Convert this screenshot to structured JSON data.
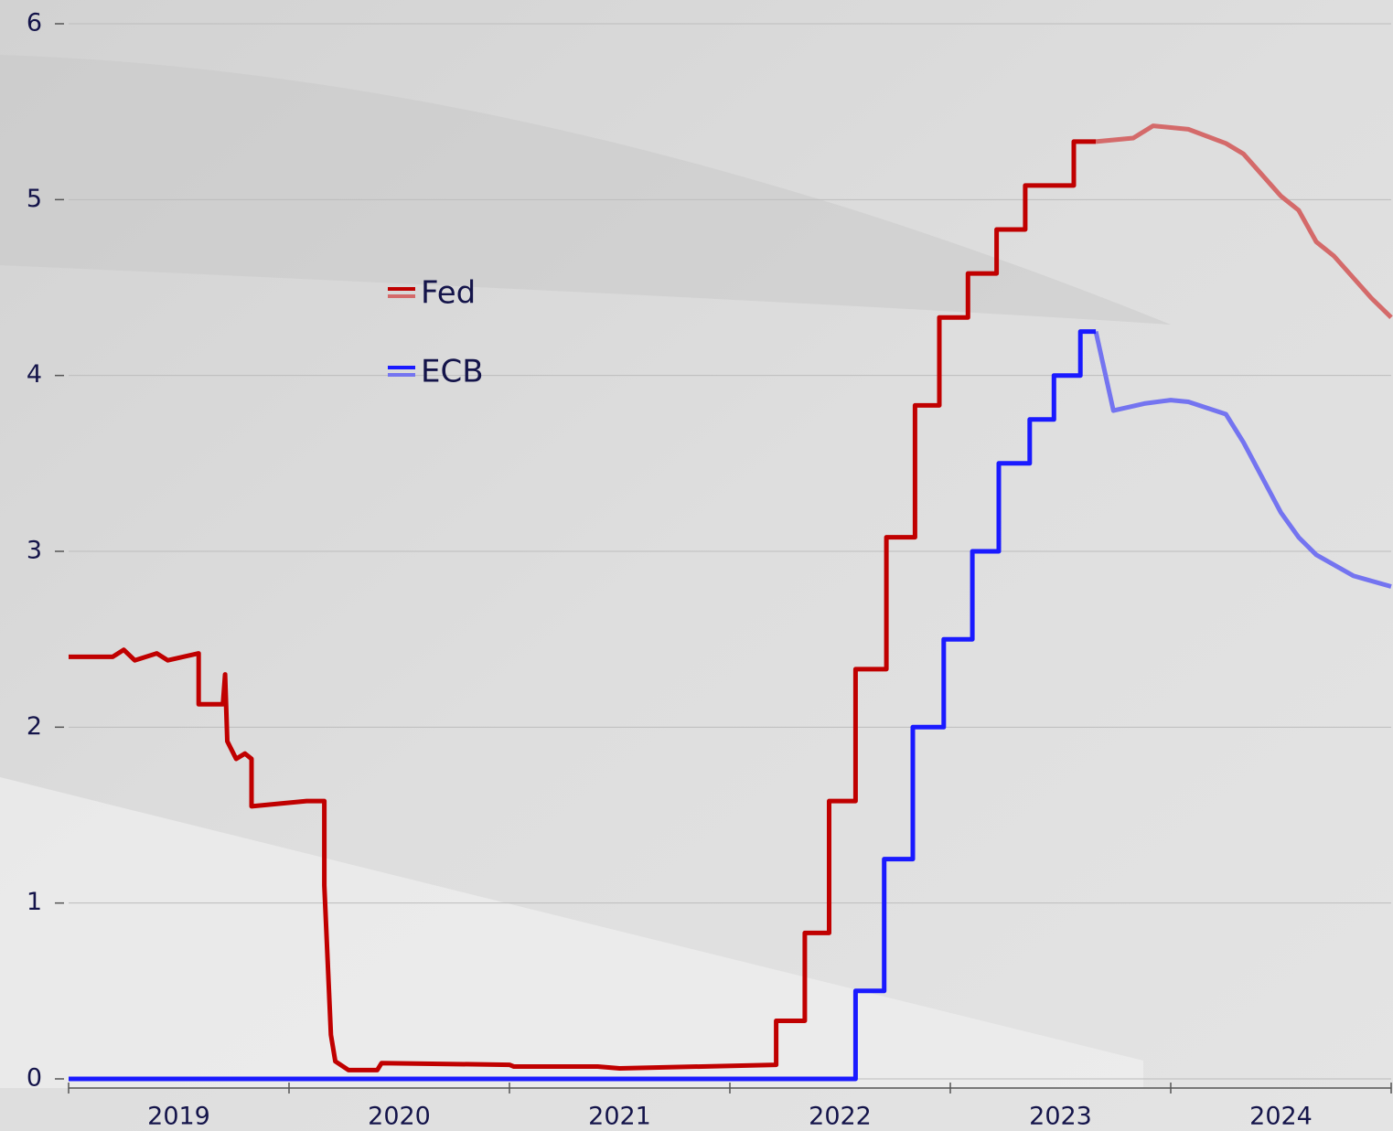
{
  "chart_data": {
    "type": "line",
    "xlim": [
      2019,
      2025
    ],
    "ylim": [
      0,
      6
    ],
    "yticks": [
      0,
      1,
      2,
      3,
      4,
      5,
      6
    ],
    "xticks": [
      2019,
      2020,
      2021,
      2022,
      2023,
      2024,
      2025
    ],
    "x_labels": [
      {
        "value": 2019.5,
        "label": "2019"
      },
      {
        "value": 2020.5,
        "label": "2020"
      },
      {
        "value": 2021.5,
        "label": "2021"
      },
      {
        "value": 2022.5,
        "label": "2022"
      },
      {
        "value": 2023.5,
        "label": "2023"
      },
      {
        "value": 2024.5,
        "label": "2024"
      }
    ],
    "grid": true,
    "series": [
      {
        "name": "Fed",
        "color": "#c00000",
        "forecast_color": "#d46a6a",
        "x": [
          2019.0,
          2019.2,
          2019.25,
          2019.3,
          2019.4,
          2019.45,
          2019.59,
          2019.59,
          2019.7,
          2019.71,
          2019.72,
          2019.76,
          2019.8,
          2019.83,
          2019.83,
          2020.08,
          2020.16,
          2020.16,
          2020.19,
          2020.21,
          2020.27,
          2020.4,
          2020.42,
          2021.0,
          2021.02,
          2021.4,
          2021.5,
          2022.21,
          2022.21,
          2022.34,
          2022.34,
          2022.45,
          2022.45,
          2022.57,
          2022.57,
          2022.71,
          2022.71,
          2022.84,
          2022.84,
          2022.95,
          2022.95,
          2023.08,
          2023.08,
          2023.21,
          2023.21,
          2023.34,
          2023.34,
          2023.56,
          2023.56,
          2023.66
        ],
        "values": [
          2.4,
          2.4,
          2.44,
          2.38,
          2.42,
          2.38,
          2.42,
          2.13,
          2.13,
          2.3,
          1.92,
          1.82,
          1.85,
          1.82,
          1.55,
          1.58,
          1.58,
          1.1,
          0.25,
          0.1,
          0.05,
          0.05,
          0.09,
          0.08,
          0.07,
          0.07,
          0.06,
          0.08,
          0.33,
          0.33,
          0.83,
          0.83,
          1.58,
          1.58,
          2.33,
          2.33,
          3.08,
          3.08,
          3.83,
          3.83,
          4.33,
          4.33,
          4.58,
          4.58,
          4.83,
          4.83,
          5.08,
          5.08,
          5.33,
          5.33
        ],
        "forecast_x": [
          2023.66,
          2023.83,
          2023.92,
          2024.08,
          2024.25,
          2024.33,
          2024.5,
          2024.58,
          2024.66,
          2024.74,
          2024.91,
          2025.0
        ],
        "forecast_values": [
          5.33,
          5.35,
          5.42,
          5.4,
          5.32,
          5.26,
          5.02,
          4.94,
          4.76,
          4.68,
          4.44,
          4.33
        ]
      },
      {
        "name": "ECB",
        "color": "#1a1aff",
        "forecast_color": "#7474f0",
        "x": [
          2019.0,
          2022.57,
          2022.57,
          2022.7,
          2022.7,
          2022.83,
          2022.83,
          2022.97,
          2022.97,
          2023.1,
          2023.1,
          2023.22,
          2023.22,
          2023.36,
          2023.36,
          2023.47,
          2023.47,
          2023.59,
          2023.59,
          2023.66
        ],
        "values": [
          0,
          0,
          0.5,
          0.5,
          1.25,
          1.25,
          2.0,
          2.0,
          2.5,
          2.5,
          3.0,
          3.0,
          3.5,
          3.5,
          3.75,
          3.75,
          4.0,
          4.0,
          4.25,
          4.25
        ],
        "forecast_x": [
          2023.66,
          2023.74,
          2023.88,
          2024.0,
          2024.08,
          2024.25,
          2024.33,
          2024.5,
          2024.58,
          2024.66,
          2024.83,
          2025.0
        ],
        "forecast_values": [
          4.25,
          3.8,
          3.84,
          3.86,
          3.85,
          3.78,
          3.62,
          3.22,
          3.08,
          2.98,
          2.86,
          2.8
        ]
      }
    ]
  }
}
